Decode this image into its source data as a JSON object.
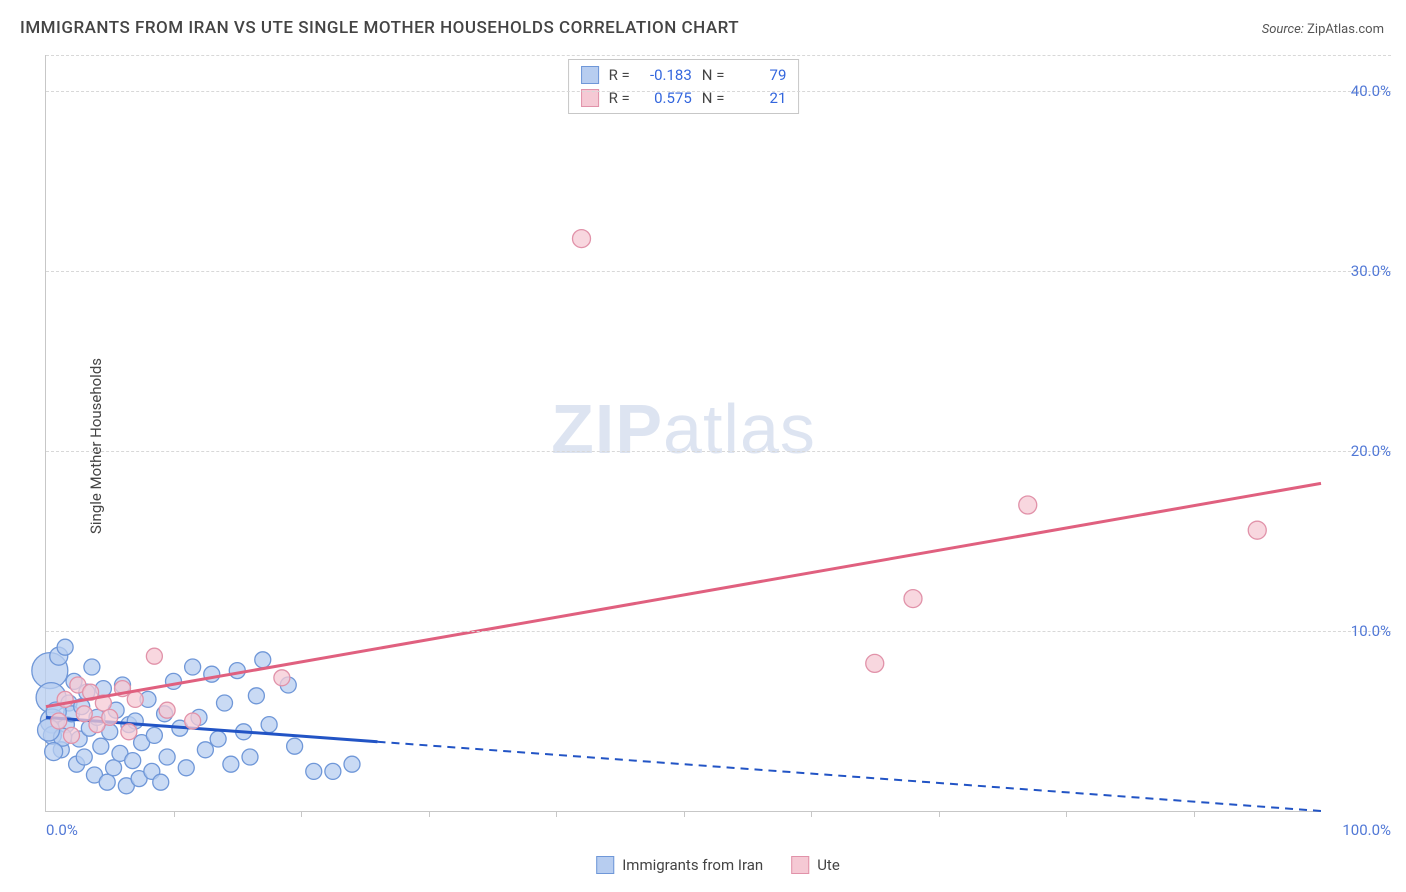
{
  "title": "IMMIGRANTS FROM IRAN VS UTE SINGLE MOTHER HOUSEHOLDS CORRELATION CHART",
  "source_label": "Source:",
  "source_value": "ZipAtlas.com",
  "ylabel": "Single Mother Households",
  "watermark_bold": "ZIP",
  "watermark_rest": "atlas",
  "chart": {
    "type": "scatter",
    "xlim": [
      0,
      100
    ],
    "ylim": [
      0,
      42
    ],
    "x_min_label": "0.0%",
    "x_max_label": "100.0%",
    "y_ticks": [
      10,
      20,
      30,
      40
    ],
    "y_tick_labels": [
      "10.0%",
      "20.0%",
      "30.0%",
      "40.0%"
    ],
    "x_tick_positions": [
      10,
      20,
      30,
      40,
      50,
      60,
      70,
      80,
      90
    ],
    "background_color": "#ffffff",
    "grid_color": "#d8d8d8",
    "axis_color": "#c7c7c7",
    "tick_label_color": "#5178d6",
    "series": [
      {
        "key": "iran",
        "label": "Immigrants from Iran",
        "fill": "#b7cdf0",
        "stroke": "#6f97d8",
        "swatch_fill": "#b7cdf0",
        "swatch_border": "#6f97d8",
        "R": "-0.183",
        "N": "79",
        "trend": {
          "x1": 0,
          "y1": 5.2,
          "x2": 100,
          "y2": 0,
          "solid_until_x": 26,
          "color": "#2254c5"
        },
        "points": [
          {
            "x": 0.3,
            "y": 7.8,
            "r": 18
          },
          {
            "x": 0.4,
            "y": 6.3,
            "r": 15
          },
          {
            "x": 0.5,
            "y": 5.0,
            "r": 12
          },
          {
            "x": 0.5,
            "y": 4.2,
            "r": 9
          },
          {
            "x": 1.0,
            "y": 8.6,
            "r": 9
          },
          {
            "x": 1.2,
            "y": 3.4,
            "r": 8
          },
          {
            "x": 1.5,
            "y": 9.1,
            "r": 8
          },
          {
            "x": 1.6,
            "y": 4.8,
            "r": 8
          },
          {
            "x": 1.8,
            "y": 6.0,
            "r": 8
          },
          {
            "x": 2.0,
            "y": 5.4,
            "r": 8
          },
          {
            "x": 2.2,
            "y": 7.2,
            "r": 8
          },
          {
            "x": 2.4,
            "y": 2.6,
            "r": 8
          },
          {
            "x": 2.6,
            "y": 4.0,
            "r": 8
          },
          {
            "x": 2.8,
            "y": 5.8,
            "r": 8
          },
          {
            "x": 3.0,
            "y": 3.0,
            "r": 8
          },
          {
            "x": 3.2,
            "y": 6.6,
            "r": 8
          },
          {
            "x": 3.4,
            "y": 4.6,
            "r": 8
          },
          {
            "x": 3.6,
            "y": 8.0,
            "r": 8
          },
          {
            "x": 3.8,
            "y": 2.0,
            "r": 8
          },
          {
            "x": 4.0,
            "y": 5.2,
            "r": 8
          },
          {
            "x": 4.3,
            "y": 3.6,
            "r": 8
          },
          {
            "x": 4.5,
            "y": 6.8,
            "r": 8
          },
          {
            "x": 4.8,
            "y": 1.6,
            "r": 8
          },
          {
            "x": 5.0,
            "y": 4.4,
            "r": 8
          },
          {
            "x": 5.3,
            "y": 2.4,
            "r": 8
          },
          {
            "x": 5.5,
            "y": 5.6,
            "r": 8
          },
          {
            "x": 5.8,
            "y": 3.2,
            "r": 8
          },
          {
            "x": 6.0,
            "y": 7.0,
            "r": 8
          },
          {
            "x": 6.3,
            "y": 1.4,
            "r": 8
          },
          {
            "x": 6.5,
            "y": 4.8,
            "r": 8
          },
          {
            "x": 6.8,
            "y": 2.8,
            "r": 8
          },
          {
            "x": 7.0,
            "y": 5.0,
            "r": 8
          },
          {
            "x": 7.3,
            "y": 1.8,
            "r": 8
          },
          {
            "x": 7.5,
            "y": 3.8,
            "r": 8
          },
          {
            "x": 8.0,
            "y": 6.2,
            "r": 8
          },
          {
            "x": 8.3,
            "y": 2.2,
            "r": 8
          },
          {
            "x": 8.5,
            "y": 4.2,
            "r": 8
          },
          {
            "x": 9.0,
            "y": 1.6,
            "r": 8
          },
          {
            "x": 9.3,
            "y": 5.4,
            "r": 8
          },
          {
            "x": 9.5,
            "y": 3.0,
            "r": 8
          },
          {
            "x": 10.0,
            "y": 7.2,
            "r": 8
          },
          {
            "x": 10.5,
            "y": 4.6,
            "r": 8
          },
          {
            "x": 11.0,
            "y": 2.4,
            "r": 8
          },
          {
            "x": 11.5,
            "y": 8.0,
            "r": 8
          },
          {
            "x": 12.0,
            "y": 5.2,
            "r": 8
          },
          {
            "x": 12.5,
            "y": 3.4,
            "r": 8
          },
          {
            "x": 13.0,
            "y": 7.6,
            "r": 8
          },
          {
            "x": 13.5,
            "y": 4.0,
            "r": 8
          },
          {
            "x": 14.0,
            "y": 6.0,
            "r": 8
          },
          {
            "x": 14.5,
            "y": 2.6,
            "r": 8
          },
          {
            "x": 15.0,
            "y": 7.8,
            "r": 8
          },
          {
            "x": 15.5,
            "y": 4.4,
            "r": 8
          },
          {
            "x": 16.0,
            "y": 3.0,
            "r": 8
          },
          {
            "x": 16.5,
            "y": 6.4,
            "r": 8
          },
          {
            "x": 17.0,
            "y": 8.4,
            "r": 8
          },
          {
            "x": 17.5,
            "y": 4.8,
            "r": 8
          },
          {
            "x": 19.0,
            "y": 7.0,
            "r": 8
          },
          {
            "x": 19.5,
            "y": 3.6,
            "r": 8
          },
          {
            "x": 21.0,
            "y": 2.2,
            "r": 8
          },
          {
            "x": 22.5,
            "y": 2.2,
            "r": 8
          },
          {
            "x": 24.0,
            "y": 2.6,
            "r": 8
          },
          {
            "x": 0.8,
            "y": 5.5,
            "r": 10
          },
          {
            "x": 1.3,
            "y": 4.1,
            "r": 9
          },
          {
            "x": 0.6,
            "y": 3.3,
            "r": 9
          },
          {
            "x": 0.2,
            "y": 4.5,
            "r": 11
          }
        ]
      },
      {
        "key": "ute",
        "label": "Ute",
        "fill": "#f5c9d4",
        "stroke": "#e192a9",
        "swatch_fill": "#f5c9d4",
        "swatch_border": "#e192a9",
        "R": "0.575",
        "N": "21",
        "trend": {
          "x1": 0,
          "y1": 5.8,
          "x2": 100,
          "y2": 18.2,
          "solid_until_x": 100,
          "color": "#e0607f"
        },
        "points": [
          {
            "x": 1.0,
            "y": 5.0,
            "r": 8
          },
          {
            "x": 1.5,
            "y": 6.2,
            "r": 8
          },
          {
            "x": 2.0,
            "y": 4.2,
            "r": 8
          },
          {
            "x": 2.5,
            "y": 7.0,
            "r": 8
          },
          {
            "x": 3.0,
            "y": 5.4,
            "r": 8
          },
          {
            "x": 3.5,
            "y": 6.6,
            "r": 8
          },
          {
            "x": 4.0,
            "y": 4.8,
            "r": 8
          },
          {
            "x": 4.5,
            "y": 6.0,
            "r": 8
          },
          {
            "x": 5.0,
            "y": 5.2,
            "r": 8
          },
          {
            "x": 6.0,
            "y": 6.8,
            "r": 8
          },
          {
            "x": 6.5,
            "y": 4.4,
            "r": 8
          },
          {
            "x": 7.0,
            "y": 6.2,
            "r": 8
          },
          {
            "x": 8.5,
            "y": 8.6,
            "r": 8
          },
          {
            "x": 9.5,
            "y": 5.6,
            "r": 8
          },
          {
            "x": 11.5,
            "y": 5.0,
            "r": 8
          },
          {
            "x": 18.5,
            "y": 7.4,
            "r": 8
          },
          {
            "x": 42.0,
            "y": 31.8,
            "r": 9
          },
          {
            "x": 65.0,
            "y": 8.2,
            "r": 9
          },
          {
            "x": 68.0,
            "y": 11.8,
            "r": 9
          },
          {
            "x": 77.0,
            "y": 17.0,
            "r": 9
          },
          {
            "x": 95.0,
            "y": 15.6,
            "r": 9
          }
        ]
      }
    ],
    "legend": {
      "R_label": "R =",
      "N_label": "N ="
    },
    "bottom_legend": [
      {
        "series": "iran"
      },
      {
        "series": "ute"
      }
    ]
  }
}
